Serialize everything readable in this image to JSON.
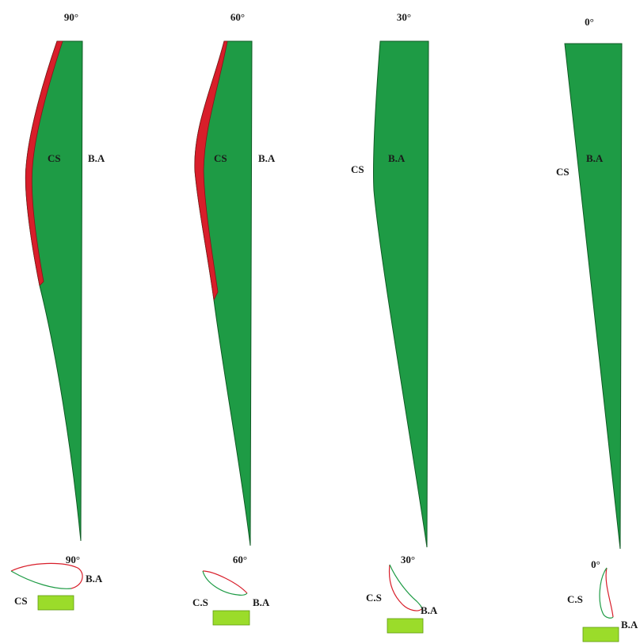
{
  "colors": {
    "blade": "#1e9b45",
    "blade_edge": "#0f5a24",
    "separation": "#d81e2a",
    "root_block": "#9bdc2a",
    "outline_green": "#1e9b45",
    "outline_red": "#d81e2a"
  },
  "panels": [
    {
      "top_angle": "90°",
      "suction_label": "CS",
      "axis_label": "B.A",
      "bottom_angle": "90°",
      "section_suction_label": "CS",
      "section_axis_label": "B.A",
      "separation": "large"
    },
    {
      "top_angle": "60°",
      "suction_label": "CS",
      "axis_label": "B.A",
      "bottom_angle": "60°",
      "section_suction_label": "C.S",
      "section_axis_label": "B.A",
      "separation": "medium"
    },
    {
      "top_angle": "30°",
      "suction_label": "CS",
      "axis_label": "B.A",
      "bottom_angle": "30°",
      "section_suction_label": "C.S",
      "section_axis_label": "B.A",
      "separation": "none"
    },
    {
      "top_angle": "0°",
      "suction_label": "CS",
      "axis_label": "B.A",
      "bottom_angle": "0°",
      "section_suction_label": "C.S",
      "section_axis_label": "B.A",
      "separation": "none"
    }
  ]
}
